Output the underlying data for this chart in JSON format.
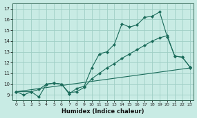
{
  "xlabel": "Humidex (Indice chaleur)",
  "bg_color": "#c8ebe4",
  "grid_color": "#a0cfc5",
  "line_color": "#1a6b5a",
  "xlim": [
    -0.5,
    23.5
  ],
  "ylim": [
    8.5,
    17.5
  ],
  "xticks": [
    0,
    1,
    2,
    3,
    4,
    5,
    6,
    7,
    8,
    9,
    10,
    11,
    12,
    13,
    14,
    15,
    16,
    17,
    18,
    19,
    20,
    21,
    22,
    23
  ],
  "yticks": [
    9,
    10,
    11,
    12,
    13,
    14,
    15,
    16,
    17
  ],
  "line1_x": [
    0,
    1,
    2,
    3,
    4,
    5,
    6,
    7,
    8,
    9,
    10,
    11,
    12,
    13,
    14,
    15,
    16,
    17,
    18,
    19,
    20,
    21,
    22,
    23
  ],
  "line1_y": [
    9.3,
    9.0,
    9.3,
    8.8,
    10.0,
    10.1,
    10.0,
    9.1,
    9.6,
    9.8,
    11.5,
    12.8,
    13.0,
    13.7,
    15.6,
    15.3,
    15.5,
    16.2,
    16.3,
    16.7,
    14.4,
    12.6,
    12.5,
    11.6
  ],
  "line2_x": [
    0,
    2,
    3,
    4,
    5,
    6,
    7,
    8,
    9,
    10,
    11,
    12,
    13,
    14,
    15,
    16,
    17,
    18,
    19,
    20,
    21,
    22,
    23
  ],
  "line2_y": [
    9.3,
    9.3,
    9.5,
    10.0,
    10.1,
    10.0,
    9.2,
    9.3,
    9.7,
    10.5,
    11.0,
    11.5,
    11.9,
    12.4,
    12.8,
    13.2,
    13.6,
    14.0,
    14.3,
    14.5,
    12.6,
    12.5,
    11.6
  ],
  "line3_x": [
    0,
    23
  ],
  "line3_y": [
    9.3,
    11.5
  ]
}
